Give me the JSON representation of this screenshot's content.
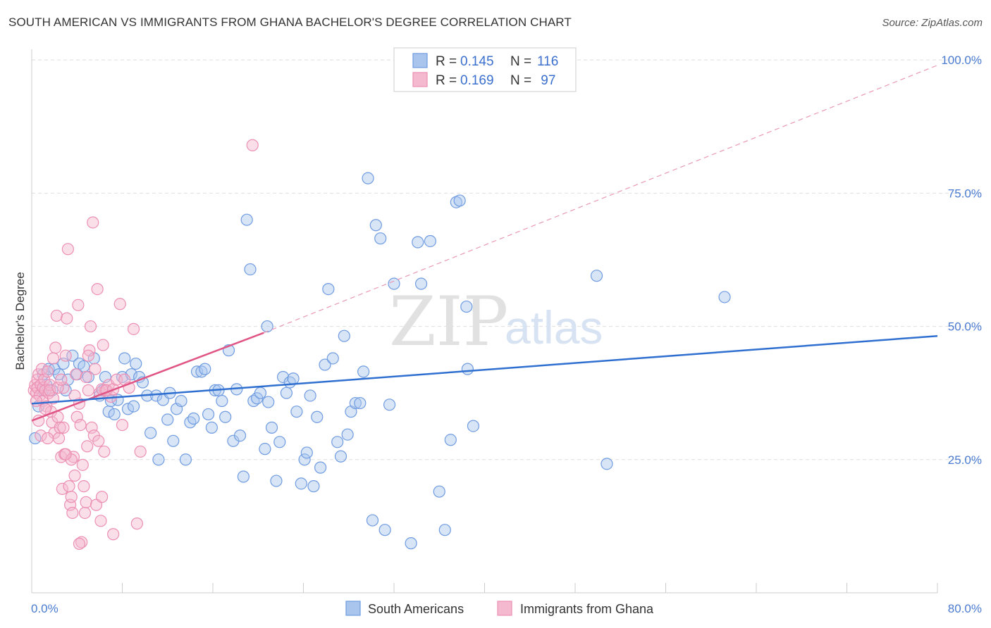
{
  "title": "SOUTH AMERICAN VS IMMIGRANTS FROM GHANA BACHELOR'S DEGREE CORRELATION CHART",
  "source": "Source: ZipAtlas.com",
  "watermark": {
    "zip": "ZIP",
    "atlas": "atlas"
  },
  "chart_data": {
    "type": "scatter",
    "title": "SOUTH AMERICAN VS IMMIGRANTS FROM GHANA BACHELOR'S DEGREE CORRELATION CHART",
    "xlabel": "",
    "ylabel": "Bachelor's Degree",
    "xlim": [
      0,
      80
    ],
    "ylim": [
      0,
      102
    ],
    "x_tick_labels": {
      "min": "0.0%",
      "max": "80.0%"
    },
    "x_minor_ticks": [
      0,
      8,
      16,
      24,
      32,
      40,
      48,
      56,
      64,
      72,
      80
    ],
    "y_ticks": [
      {
        "value": 25,
        "label": "25.0%"
      },
      {
        "value": 50,
        "label": "50.0%"
      },
      {
        "value": 75,
        "label": "75.0%"
      },
      {
        "value": 100,
        "label": "100.0%"
      }
    ],
    "grid": "horizontal dashed",
    "legend": {
      "placement": "top-center",
      "rows": [
        {
          "r_label": "R = ",
          "r_value": "0.145",
          "n_label": "N = ",
          "n_value": "116"
        },
        {
          "r_label": "R = ",
          "r_value": "0.169",
          "n_label": "N = ",
          "n_value": " 97"
        }
      ]
    },
    "series": [
      {
        "name": "South Americans",
        "color": "#6f9be0",
        "fill": "#a9c5ee",
        "line_color": "#2f6fd0",
        "trend": {
          "x0": 0,
          "y0": 35.5,
          "x1": 80,
          "y1": 48.2
        },
        "points": [
          [
            0.3,
            29
          ],
          [
            0.6,
            35
          ],
          [
            1,
            38
          ],
          [
            1,
            41
          ],
          [
            1.3,
            39
          ],
          [
            1.5,
            42
          ],
          [
            1.8,
            38
          ],
          [
            2,
            42
          ],
          [
            2.4,
            41
          ],
          [
            2.8,
            43
          ],
          [
            3,
            38
          ],
          [
            3.2,
            40
          ],
          [
            3.6,
            44.5
          ],
          [
            4,
            41
          ],
          [
            4.2,
            43
          ],
          [
            4.6,
            42.5
          ],
          [
            5,
            40.5
          ],
          [
            5.5,
            44
          ],
          [
            6,
            37
          ],
          [
            6.3,
            38
          ],
          [
            6.5,
            40.5
          ],
          [
            6.8,
            34
          ],
          [
            7,
            36
          ],
          [
            7.3,
            33.5
          ],
          [
            7.6,
            36.2
          ],
          [
            8,
            40.5
          ],
          [
            8.2,
            44
          ],
          [
            8.5,
            34.5
          ],
          [
            8.8,
            41
          ],
          [
            9,
            35
          ],
          [
            9.2,
            43
          ],
          [
            9.5,
            40.5
          ],
          [
            9.8,
            39.5
          ],
          [
            10.2,
            37
          ],
          [
            10.5,
            30
          ],
          [
            11,
            37
          ],
          [
            11.2,
            25
          ],
          [
            11.6,
            36.2
          ],
          [
            12,
            32.5
          ],
          [
            12.2,
            37.5
          ],
          [
            12.5,
            28.5
          ],
          [
            12.8,
            34.5
          ],
          [
            13.2,
            36
          ],
          [
            13.6,
            25
          ],
          [
            14,
            32
          ],
          [
            14.3,
            32.7
          ],
          [
            14.6,
            41.5
          ],
          [
            15,
            41.5
          ],
          [
            15.3,
            42
          ],
          [
            15.6,
            33.5
          ],
          [
            15.9,
            31
          ],
          [
            16.2,
            38
          ],
          [
            16.5,
            38
          ],
          [
            16.8,
            36
          ],
          [
            17.1,
            33
          ],
          [
            17.4,
            45.5
          ],
          [
            17.8,
            28.5
          ],
          [
            18.1,
            38.2
          ],
          [
            18.4,
            29.5
          ],
          [
            18.7,
            21.8
          ],
          [
            19,
            70
          ],
          [
            19.3,
            60.7
          ],
          [
            19.6,
            36
          ],
          [
            19.9,
            36.5
          ],
          [
            20.2,
            37.5
          ],
          [
            20.6,
            27
          ],
          [
            20.9,
            35.8
          ],
          [
            21.2,
            31
          ],
          [
            21.6,
            21
          ],
          [
            21.9,
            28.3
          ],
          [
            22.2,
            40.5
          ],
          [
            22.5,
            37.5
          ],
          [
            22.8,
            39.5
          ],
          [
            23.1,
            40.2
          ],
          [
            23.4,
            34
          ],
          [
            23.8,
            20.5
          ],
          [
            24.1,
            25
          ],
          [
            24.3,
            26.3
          ],
          [
            24.6,
            37
          ],
          [
            24.9,
            20
          ],
          [
            25.2,
            33
          ],
          [
            25.5,
            23.5
          ],
          [
            25.9,
            42.8
          ],
          [
            26.2,
            57
          ],
          [
            26.6,
            44
          ],
          [
            27,
            28.3
          ],
          [
            27.3,
            25.6
          ],
          [
            27.6,
            48.2
          ],
          [
            27.9,
            29.7
          ],
          [
            28.2,
            34
          ],
          [
            28.6,
            35.6
          ],
          [
            29,
            35.6
          ],
          [
            29.3,
            41.5
          ],
          [
            29.7,
            77.8
          ],
          [
            30.1,
            13.6
          ],
          [
            30.4,
            69
          ],
          [
            30.8,
            66.5
          ],
          [
            31.2,
            11.8
          ],
          [
            31.6,
            35.3
          ],
          [
            32,
            58
          ],
          [
            33.5,
            9.3
          ],
          [
            34.1,
            65.8
          ],
          [
            34.4,
            58
          ],
          [
            35.2,
            66
          ],
          [
            36,
            19
          ],
          [
            36.5,
            11.8
          ],
          [
            37,
            28.7
          ],
          [
            37.5,
            73.3
          ],
          [
            37.8,
            73.6
          ],
          [
            38.4,
            53.7
          ],
          [
            39,
            31.3
          ],
          [
            38.5,
            42
          ],
          [
            49.9,
            59.5
          ],
          [
            50.8,
            24.2
          ],
          [
            61.2,
            55.5
          ],
          [
            20.8,
            50
          ]
        ]
      },
      {
        "name": "Immigrants from Ghana",
        "color": "#ec8fb3",
        "fill": "#f4b9cf",
        "line_color": "#e05585",
        "trend": {
          "x0": 0,
          "y0": 32.3,
          "x1": 20.5,
          "y1": 48.8
        },
        "trend_dashed": {
          "x0": 20.5,
          "y0": 48.8,
          "x1": 80,
          "y1": 99
        },
        "points": [
          [
            0.2,
            38
          ],
          [
            0.3,
            39
          ],
          [
            0.4,
            37.5
          ],
          [
            0.5,
            40
          ],
          [
            0.5,
            38.5
          ],
          [
            0.6,
            41
          ],
          [
            0.7,
            37
          ],
          [
            0.8,
            39
          ],
          [
            0.9,
            42
          ],
          [
            1,
            38.5
          ],
          [
            1,
            36
          ],
          [
            1.1,
            40
          ],
          [
            1.2,
            38
          ],
          [
            1.3,
            35
          ],
          [
            1.4,
            41.5
          ],
          [
            1.5,
            37.5
          ],
          [
            1.6,
            39
          ],
          [
            1.7,
            34
          ],
          [
            1.8,
            32
          ],
          [
            1.9,
            36.5
          ],
          [
            2,
            30
          ],
          [
            2.1,
            46
          ],
          [
            2.2,
            52
          ],
          [
            2.3,
            33
          ],
          [
            2.4,
            29
          ],
          [
            2.5,
            31
          ],
          [
            2.6,
            25.5
          ],
          [
            2.7,
            19.5
          ],
          [
            2.8,
            38.5
          ],
          [
            2.9,
            26
          ],
          [
            3,
            44.5
          ],
          [
            3.1,
            51.5
          ],
          [
            3.2,
            64.5
          ],
          [
            3.3,
            20
          ],
          [
            3.4,
            16.5
          ],
          [
            3.5,
            18
          ],
          [
            3.6,
            15
          ],
          [
            3.7,
            25.5
          ],
          [
            3.8,
            22
          ],
          [
            3.9,
            41
          ],
          [
            4,
            33
          ],
          [
            4.1,
            54
          ],
          [
            4.2,
            35.5
          ],
          [
            4.3,
            31.5
          ],
          [
            4.4,
            9.5
          ],
          [
            4.5,
            24
          ],
          [
            4.6,
            20
          ],
          [
            4.7,
            15
          ],
          [
            4.8,
            17
          ],
          [
            4.9,
            27.5
          ],
          [
            5,
            38
          ],
          [
            5.1,
            45.5
          ],
          [
            5.2,
            50
          ],
          [
            5.3,
            31
          ],
          [
            5.4,
            69.5
          ],
          [
            5.5,
            29.5
          ],
          [
            5.6,
            42
          ],
          [
            5.7,
            16.5
          ],
          [
            5.8,
            57
          ],
          [
            5.9,
            28.5
          ],
          [
            6,
            37.5
          ],
          [
            6.1,
            13.5
          ],
          [
            6.2,
            18
          ],
          [
            6.3,
            46.5
          ],
          [
            6.4,
            26.5
          ],
          [
            6.5,
            38
          ],
          [
            6.8,
            39
          ],
          [
            7,
            36.8
          ],
          [
            6.2,
            38.2
          ],
          [
            6.6,
            38
          ],
          [
            7.2,
            38.2
          ],
          [
            7.5,
            40
          ],
          [
            7.2,
            11
          ],
          [
            7.8,
            54.2
          ],
          [
            8,
            31.5
          ],
          [
            8.2,
            40
          ],
          [
            8.6,
            38.5
          ],
          [
            9,
            49.5
          ],
          [
            9.3,
            13
          ],
          [
            9.6,
            26.5
          ],
          [
            19.5,
            84
          ],
          [
            0.8,
            29.5
          ],
          [
            1.6,
            38
          ],
          [
            2.8,
            31
          ],
          [
            3.5,
            25
          ],
          [
            4.2,
            9.2
          ],
          [
            4.8,
            40.5
          ],
          [
            1.2,
            34.5
          ],
          [
            0.4,
            36
          ],
          [
            1.9,
            44
          ],
          [
            2.3,
            38.5
          ],
          [
            3,
            26
          ],
          [
            5,
            44.5
          ],
          [
            0.6,
            32.3
          ],
          [
            1.4,
            29
          ],
          [
            2.6,
            40
          ],
          [
            3.8,
            37
          ]
        ]
      }
    ],
    "bottom_legend": [
      "South Americans",
      "Immigrants from Ghana"
    ]
  }
}
